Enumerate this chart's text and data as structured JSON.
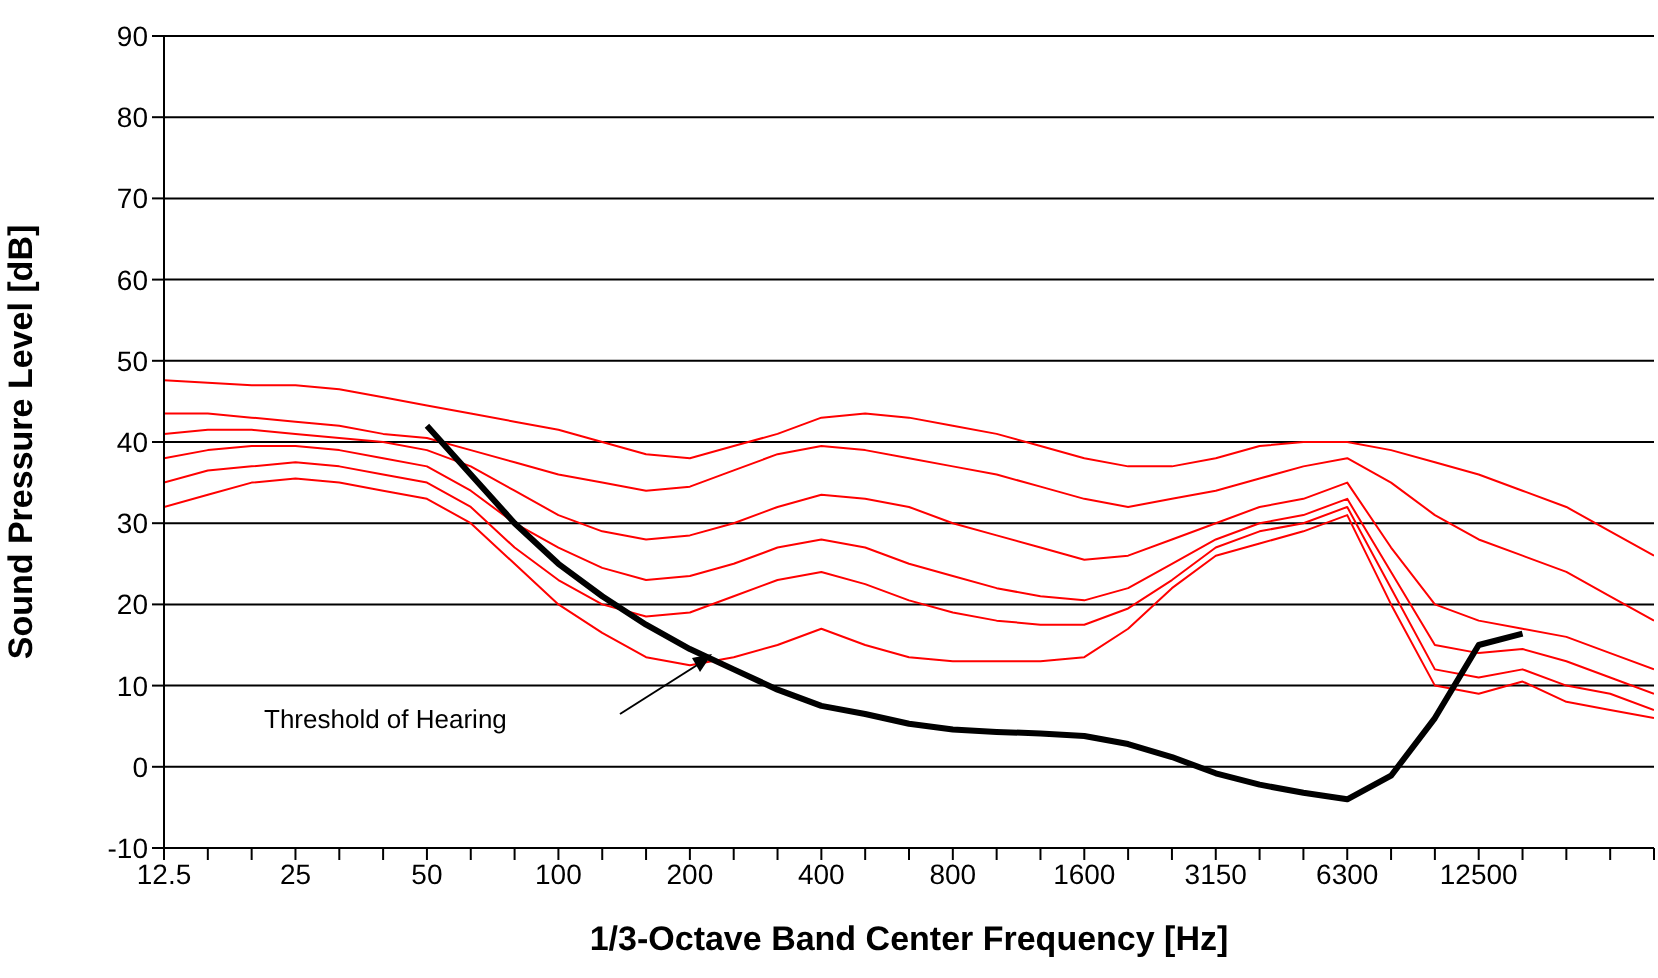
{
  "chart_data": {
    "type": "line",
    "xlabel": "1/3-Octave Band Center Frequency [Hz]",
    "ylabel": "Sound Pressure Level [dB]",
    "categories": [
      "12.5",
      null,
      null,
      "25",
      null,
      null,
      "50",
      null,
      null,
      "100",
      null,
      null,
      "200",
      null,
      null,
      "400",
      null,
      null,
      "800",
      null,
      null,
      "1600",
      null,
      null,
      "3150",
      null,
      null,
      "6300",
      null,
      null,
      "12500",
      null,
      null,
      null,
      null
    ],
    "series": [
      {
        "color": "#ff0000",
        "values": [
          47.6,
          47.3,
          47,
          47,
          46.5,
          45.5,
          44.5,
          43.5,
          42.5,
          41.5,
          40,
          38.5,
          38,
          39.5,
          41,
          43,
          43.5,
          43,
          42,
          41,
          39.5,
          38,
          37,
          37,
          38,
          39.5,
          40,
          40,
          39,
          37.5,
          36,
          34,
          32,
          29,
          26
        ]
      },
      {
        "color": "#ff0000",
        "values": [
          43.5,
          43.5,
          43,
          42.5,
          42,
          41,
          40.5,
          39,
          37.5,
          36,
          35,
          34,
          34.5,
          36.5,
          38.5,
          39.5,
          39,
          38,
          37,
          36,
          34.5,
          33,
          32,
          33,
          34,
          35.5,
          37,
          38,
          35,
          31,
          28,
          26,
          24,
          21,
          18
        ]
      },
      {
        "color": "#ff0000",
        "values": [
          41,
          41.5,
          41.5,
          41,
          40.5,
          40,
          39,
          37,
          34,
          31,
          29,
          28,
          28.5,
          30,
          32,
          33.5,
          33,
          32,
          30,
          28.5,
          27,
          25.5,
          26,
          28,
          30,
          32,
          33,
          35,
          27,
          20,
          18,
          17,
          16,
          14,
          12
        ]
      },
      {
        "color": "#ff0000",
        "values": [
          38,
          39,
          39.5,
          39.5,
          39,
          38,
          37,
          34,
          30,
          27,
          24.5,
          23,
          23.5,
          25,
          27,
          28,
          27,
          25,
          23.5,
          22,
          21,
          20.5,
          22,
          25,
          28,
          30,
          31,
          33,
          24,
          15,
          14,
          14.5,
          13,
          11,
          9
        ]
      },
      {
        "color": "#ff0000",
        "values": [
          35,
          36.5,
          37,
          37.5,
          37,
          36,
          35,
          32,
          27,
          23,
          20,
          18.5,
          19,
          21,
          23,
          24,
          22.5,
          20.5,
          19,
          18,
          17.5,
          17.5,
          19.5,
          23,
          27,
          29,
          30,
          32,
          22,
          12,
          11,
          12,
          10,
          9,
          7
        ]
      },
      {
        "color": "#ff0000",
        "values": [
          32,
          33.5,
          35,
          35.5,
          35,
          34,
          33,
          30,
          25,
          20,
          16.5,
          13.5,
          12.5,
          13.5,
          15,
          17,
          15,
          13.5,
          13,
          13,
          13,
          13.5,
          17,
          22,
          26,
          27.5,
          29,
          31,
          20,
          10,
          9,
          10.5,
          8,
          7,
          6
        ]
      },
      {
        "color": "#000000",
        "values": [
          null,
          null,
          null,
          null,
          null,
          null,
          42,
          36,
          30,
          25,
          21,
          17.5,
          14.5,
          12,
          9.5,
          7.5,
          6.5,
          5.3,
          4.6,
          4.3,
          4.1,
          3.8,
          2.8,
          1.2,
          -0.8,
          -2.2,
          -3.2,
          -4,
          -1.1,
          6,
          15,
          16.4,
          null,
          null,
          null
        ]
      }
    ],
    "ylim": [
      -10,
      90
    ],
    "yticks": [
      -10,
      0,
      10,
      20,
      30,
      40,
      50,
      60,
      70,
      80,
      90
    ],
    "grid": "y",
    "annotations": [
      "Threshold of Hearing"
    ]
  }
}
